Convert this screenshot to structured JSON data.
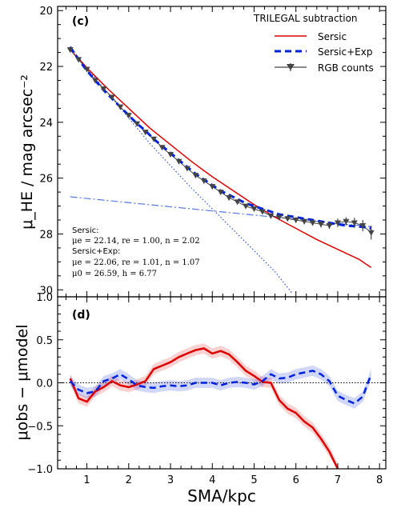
{
  "chart_data": [
    {
      "type": "line",
      "panel_label": "(c)",
      "xlabel": "SMA/kpc",
      "ylabel": "μ_HE / mag arcsec⁻²",
      "xlim": [
        0.3,
        8.15
      ],
      "ylim": [
        30.25,
        19.85
      ],
      "y_inverted": true,
      "yticks": [
        20,
        22,
        24,
        26,
        28,
        30
      ],
      "ytick_labels": [
        "20",
        "22",
        "24",
        "26",
        "28",
        "30"
      ],
      "legend": {
        "placement": "top-right",
        "title": "TRILEGAL subtraction",
        "entries": [
          "Sersic",
          "Sersic+Exp",
          "RGB counts"
        ]
      },
      "annotations": {
        "sersic_head": "Sersic:",
        "sersic_params": "μe = 22.14, re = 1.00, n = 2.02",
        "sersicexp_head": "Sersic+Exp:",
        "sersicexp_params1": "μe = 22.06, re = 1.01, n = 1.07",
        "sersicexp_params2": "μ0 = 26.59, h = 6.77"
      },
      "series": [
        {
          "name": "RGB counts",
          "color": "#444444",
          "x": [
            0.6,
            0.8,
            1.0,
            1.2,
            1.4,
            1.6,
            1.8,
            2.0,
            2.2,
            2.4,
            2.6,
            2.8,
            3.0,
            3.2,
            3.4,
            3.6,
            3.8,
            4.0,
            4.2,
            4.4,
            4.6,
            4.8,
            5.0,
            5.2,
            5.4,
            5.6,
            5.8,
            6.0,
            6.2,
            6.4,
            6.6,
            6.8,
            7.0,
            7.2,
            7.4,
            7.6,
            7.8
          ],
          "y": [
            21.4,
            21.75,
            22.1,
            22.5,
            22.8,
            23.1,
            23.45,
            23.75,
            24.05,
            24.35,
            24.6,
            24.9,
            25.15,
            25.4,
            25.65,
            25.9,
            26.1,
            26.3,
            26.5,
            26.7,
            26.85,
            27.0,
            27.1,
            27.2,
            27.35,
            27.4,
            27.45,
            27.5,
            27.55,
            27.6,
            27.65,
            27.7,
            27.6,
            27.55,
            27.6,
            27.7,
            27.95
          ],
          "yerr": [
            0.1,
            0.08,
            0.08,
            0.08,
            0.08,
            0.08,
            0.08,
            0.08,
            0.08,
            0.08,
            0.08,
            0.08,
            0.08,
            0.08,
            0.08,
            0.08,
            0.08,
            0.08,
            0.08,
            0.08,
            0.08,
            0.08,
            0.08,
            0.08,
            0.08,
            0.08,
            0.08,
            0.1,
            0.1,
            0.1,
            0.12,
            0.12,
            0.15,
            0.15,
            0.18,
            0.2,
            0.25
          ]
        },
        {
          "name": "Sersic",
          "color": "#dd0000",
          "x": [
            0.6,
            1.0,
            1.5,
            2.0,
            2.5,
            3.0,
            3.5,
            4.0,
            4.5,
            5.0,
            5.5,
            6.0,
            6.5,
            7.0,
            7.5,
            7.8
          ],
          "y": [
            21.4,
            22.05,
            22.8,
            23.5,
            24.2,
            24.8,
            25.4,
            25.95,
            26.45,
            26.95,
            27.4,
            27.8,
            28.2,
            28.55,
            28.9,
            29.2
          ]
        },
        {
          "name": "Sersic+Exp",
          "color": "#0022dd",
          "x": [
            0.6,
            0.8,
            1.0,
            1.2,
            1.4,
            1.6,
            1.8,
            2.0,
            2.2,
            2.4,
            2.6,
            2.8,
            3.0,
            3.2,
            3.4,
            3.6,
            3.8,
            4.0,
            4.2,
            4.4,
            4.6,
            4.8,
            5.0,
            5.2,
            5.4,
            5.6,
            5.8,
            6.0,
            6.2,
            6.4,
            6.6,
            6.8,
            7.0,
            7.2,
            7.4,
            7.6,
            7.8
          ],
          "y": [
            21.3,
            21.75,
            22.15,
            22.5,
            22.85,
            23.15,
            23.45,
            23.75,
            24.05,
            24.3,
            24.6,
            24.85,
            25.1,
            25.35,
            25.6,
            25.85,
            26.05,
            26.25,
            26.45,
            26.6,
            26.75,
            26.9,
            27.0,
            27.1,
            27.2,
            27.3,
            27.35,
            27.4,
            27.45,
            27.5,
            27.55,
            27.6,
            27.65,
            27.7,
            27.72,
            27.75,
            27.8
          ]
        },
        {
          "name": "Sersic component",
          "color": "#3355cc",
          "x": [
            0.6,
            1.0,
            1.5,
            2.0,
            2.5,
            3.0,
            3.5,
            4.0,
            4.5,
            5.0,
            5.5,
            5.9
          ],
          "y": [
            21.3,
            22.05,
            22.95,
            23.85,
            24.75,
            25.55,
            26.35,
            27.1,
            27.85,
            28.6,
            29.35,
            30.1
          ]
        },
        {
          "name": "Exp component",
          "color": "#5577dd",
          "x": [
            0.6,
            7.8
          ],
          "y": [
            26.67,
            27.74
          ]
        }
      ]
    },
    {
      "type": "line",
      "panel_label": "(d)",
      "xlabel": "SMA/kpc",
      "ylabel": "μobs − μmodel",
      "xlim": [
        0.3,
        8.15
      ],
      "ylim": [
        -1.0,
        1.0
      ],
      "xticks": [
        1,
        2,
        3,
        4,
        5,
        6,
        7,
        8
      ],
      "xtick_labels": [
        "1",
        "2",
        "3",
        "4",
        "5",
        "6",
        "7",
        "8"
      ],
      "yticks": [
        -1.0,
        -0.5,
        0.0,
        0.5,
        1.0
      ],
      "ytick_labels": [
        "−1.0",
        "−0.5",
        "0.0",
        "0.5",
        "1.0"
      ],
      "zero_line": 0.0,
      "series": [
        {
          "name": "Sersic",
          "color": "#dd0000",
          "band": 0.06,
          "x": [
            0.6,
            0.8,
            1.0,
            1.2,
            1.4,
            1.6,
            1.8,
            2.0,
            2.2,
            2.4,
            2.6,
            2.8,
            3.0,
            3.2,
            3.4,
            3.6,
            3.8,
            4.0,
            4.2,
            4.4,
            4.6,
            4.8,
            5.0,
            5.2,
            5.4,
            5.6,
            5.8,
            6.0,
            6.2,
            6.4,
            6.6,
            6.8,
            7.0
          ],
          "y": [
            0.05,
            -0.18,
            -0.22,
            -0.1,
            -0.05,
            0.02,
            -0.03,
            -0.05,
            -0.02,
            0.02,
            0.16,
            0.2,
            0.24,
            0.3,
            0.34,
            0.38,
            0.4,
            0.34,
            0.37,
            0.33,
            0.24,
            0.14,
            0.08,
            0.01,
            0.0,
            -0.2,
            -0.3,
            -0.35,
            -0.45,
            -0.52,
            -0.65,
            -0.8,
            -1.0
          ]
        },
        {
          "name": "Sersic+Exp",
          "color": "#0022dd",
          "band": 0.06,
          "x": [
            0.6,
            0.8,
            1.0,
            1.2,
            1.4,
            1.6,
            1.8,
            2.0,
            2.2,
            2.4,
            2.6,
            2.8,
            3.0,
            3.2,
            3.4,
            3.6,
            3.8,
            4.0,
            4.2,
            4.4,
            4.6,
            4.8,
            5.0,
            5.2,
            5.4,
            5.6,
            5.8,
            6.0,
            6.2,
            6.4,
            6.6,
            6.8,
            7.0,
            7.2,
            7.4,
            7.6,
            7.8
          ],
          "y": [
            0.02,
            -0.08,
            -0.12,
            -0.1,
            0.02,
            0.05,
            0.1,
            0.04,
            -0.03,
            -0.05,
            -0.06,
            -0.04,
            -0.03,
            -0.04,
            -0.03,
            0.0,
            0.0,
            0.0,
            -0.03,
            0.0,
            0.01,
            0.0,
            -0.02,
            0.02,
            0.1,
            0.05,
            0.06,
            0.1,
            0.12,
            0.14,
            0.1,
            0.02,
            -0.15,
            -0.2,
            -0.24,
            -0.16,
            0.1
          ]
        }
      ]
    }
  ]
}
